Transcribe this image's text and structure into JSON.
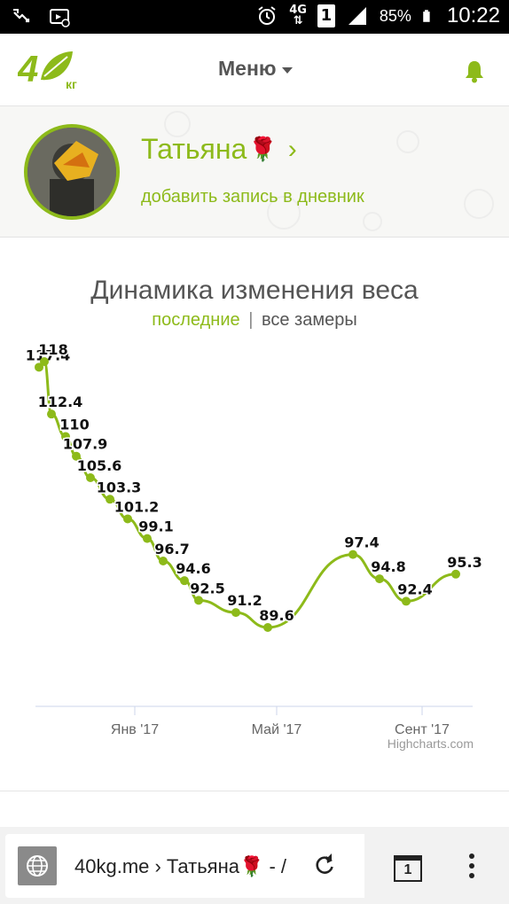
{
  "status_bar": {
    "network": "4G",
    "sim_badge": "1",
    "battery": "85%",
    "time": "10:22",
    "icons": [
      "missed-call-icon",
      "cast-icon",
      "alarm-icon",
      "signal-icon",
      "battery-icon"
    ]
  },
  "header": {
    "logo_text": "кг",
    "menu_label": "Меню",
    "icons": [
      "logo-icon",
      "bell-icon"
    ]
  },
  "profile": {
    "name": "Татьяна",
    "emoji": "🌹",
    "add_entry_link": "добавить запись в дневник"
  },
  "chart_data": {
    "type": "line",
    "title": "Динамика изменения веса",
    "tabs": {
      "active": "последние",
      "separator": "|",
      "other": "все замеры"
    },
    "x_ticks": [
      "Янв '17",
      "Май '17",
      "Сент '17"
    ],
    "credits": "Highcharts.com",
    "series": [
      {
        "values": [
          117.4,
          118,
          112.4,
          110,
          107.9,
          105.6,
          103.3,
          101.2,
          99.1,
          96.7,
          94.6,
          92.5,
          91.2,
          89.6,
          97.4,
          94.8,
          92.4,
          95.3
        ]
      }
    ],
    "accent_color": "#8dba1a"
  },
  "browser": {
    "url_text": "40kg.me › Татьяна🌹 - /",
    "tab_count": "1",
    "icons": [
      "globe-icon",
      "reload-icon",
      "tabs-icon",
      "more-icon"
    ]
  }
}
